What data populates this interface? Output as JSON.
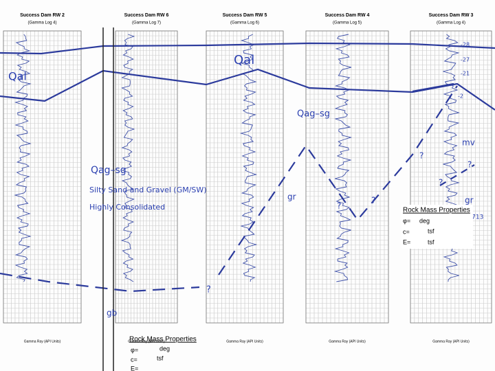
{
  "panels": [
    {
      "title": "Success Dam RW 2",
      "subtitle": "(Gamma Log 4)",
      "axis_label": "Gamma Ray (API Units)"
    },
    {
      "title": "Success Dam RW 6",
      "subtitle": "(Gamma Log 7)",
      "axis_label": "Gamma Ray (API Units)"
    },
    {
      "title": "Success Dam RW 5",
      "subtitle": "(Gamma Log 6)",
      "axis_label": "Gamma Ray (API Units)"
    },
    {
      "title": "Success Dam RW 4",
      "subtitle": "(Gamma Log 5)",
      "axis_label": "Gamma Ray (API Units)"
    },
    {
      "title": "Success Dam RW 3",
      "subtitle": "(Gamma Log 4)",
      "axis_label": "Gamma Ray (API Units)"
    }
  ],
  "labels": [
    "Qal",
    "Qal",
    "Qag–sg",
    "Silty Sand and Gravel (GM/SW)",
    "Highly Consolidated",
    "Qag–sg",
    "gr",
    "gr",
    "mv",
    "gb",
    "?",
    "?",
    "?",
    "?",
    "?",
    "?",
    "-28",
    "-27",
    "-21",
    "-2",
    "TD. 713"
  ],
  "rock_mass_bottom": {
    "title": "Rock Mass Properties",
    "rows": [
      "φ=",
      "deg",
      "c=",
      "tsf",
      "E="
    ]
  },
  "rock_mass_right": {
    "title": "Rock Mass Properties",
    "rows": [
      "φ=",
      "deg",
      "c=",
      "tsf",
      "E=",
      "tsf"
    ]
  }
}
